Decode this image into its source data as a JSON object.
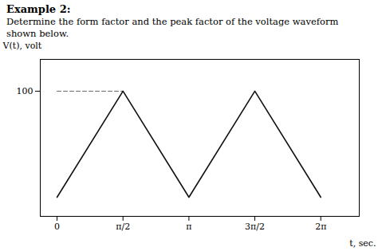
{
  "chart_data": {
    "type": "line",
    "title": "Example 2:",
    "subtitle": [
      "Determine the form factor and the peak factor of the voltage waveform",
      "shown below."
    ],
    "x": [
      0,
      1.5707963,
      3.1415927,
      4.712389,
      6.2831853
    ],
    "values": [
      0,
      100,
      0,
      100,
      0
    ],
    "color": "#111111",
    "xlabel": "t, sec.",
    "ylabel": "V(t), volt",
    "xlim": [
      -0.4,
      7.2
    ],
    "ylim": [
      -18,
      130
    ],
    "xticks": [
      0,
      {
        "value": 1.5707963,
        "label": "π/2"
      },
      {
        "value": 3.1415927,
        "label": "π"
      },
      {
        "value": 4.712389,
        "label": "3π/2"
      },
      {
        "value": 6.2831853,
        "label": "2π"
      }
    ],
    "yticks": [
      100
    ],
    "grid": false,
    "reference_line": {
      "x": [
        0,
        1.5707963
      ],
      "y": [
        100,
        100
      ],
      "color": "#666666",
      "line_style": "dashed"
    }
  }
}
